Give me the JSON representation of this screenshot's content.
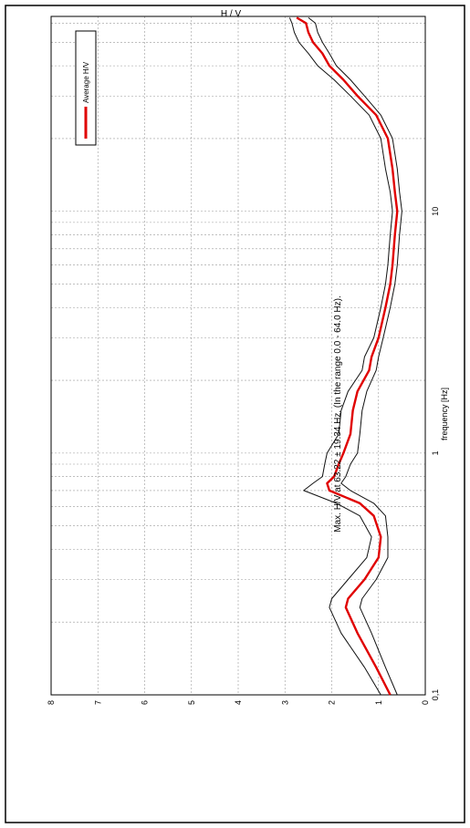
{
  "chart_data": {
    "type": "line",
    "title": "Max. H/V at 63.22 ± 19.34 Hz. (In the range 0.0 - 64.0 Hz).",
    "xlabel": "frequency [Hz]",
    "ylabel": "H / V",
    "x_scale": "log",
    "xlim": [
      0.1,
      64
    ],
    "ylim": [
      0,
      8
    ],
    "x_tick_labels": [
      "0,1",
      "1",
      "10"
    ],
    "y_tick_labels": [
      "0",
      "1",
      "2",
      "3",
      "4",
      "5",
      "6",
      "7",
      "8"
    ],
    "grid": true,
    "legend_position": "top-right",
    "orientation": "rotated 90° counter-clockwise",
    "colors": {
      "average": "#e00000",
      "bounds": "#111111",
      "grid": "#9a9a9a"
    },
    "x": [
      0.1,
      0.13,
      0.18,
      0.23,
      0.25,
      0.3,
      0.37,
      0.45,
      0.55,
      0.62,
      0.7,
      0.75,
      0.8,
      0.9,
      1.0,
      1.2,
      1.5,
      1.8,
      2.2,
      2.5,
      3.0,
      4.0,
      5.0,
      6.0,
      8.0,
      10.0,
      12.0,
      15.0,
      20.0,
      25.0,
      30.0,
      35.0,
      40.0,
      45.0,
      50.0,
      55.0,
      60.0,
      63.22
    ],
    "series": [
      {
        "name": "Average H/V",
        "values": [
          0.75,
          1.05,
          1.45,
          1.7,
          1.65,
          1.3,
          1.0,
          0.95,
          1.1,
          1.4,
          2.05,
          2.1,
          1.95,
          1.85,
          1.75,
          1.6,
          1.55,
          1.45,
          1.2,
          1.15,
          1.0,
          0.85,
          0.75,
          0.7,
          0.65,
          0.6,
          0.65,
          0.7,
          0.8,
          1.05,
          1.45,
          1.75,
          2.05,
          2.2,
          2.4,
          2.5,
          2.55,
          2.75
        ]
      },
      {
        "values": [
          0.95,
          1.3,
          1.8,
          2.05,
          2.0,
          1.65,
          1.25,
          1.15,
          1.4,
          1.9,
          2.6,
          2.4,
          2.2,
          2.15,
          2.1,
          1.85,
          1.8,
          1.65,
          1.35,
          1.3,
          1.1,
          0.95,
          0.85,
          0.8,
          0.75,
          0.7,
          0.75,
          0.85,
          0.95,
          1.2,
          1.6,
          1.95,
          2.3,
          2.5,
          2.7,
          2.8,
          2.85,
          2.9
        ]
      },
      {
        "values": [
          0.6,
          0.85,
          1.15,
          1.4,
          1.35,
          1.05,
          0.8,
          0.8,
          0.85,
          1.1,
          1.6,
          1.8,
          1.7,
          1.6,
          1.45,
          1.4,
          1.35,
          1.25,
          1.05,
          1.0,
          0.9,
          0.75,
          0.65,
          0.6,
          0.55,
          0.5,
          0.55,
          0.6,
          0.7,
          0.95,
          1.3,
          1.6,
          1.9,
          2.05,
          2.2,
          2.3,
          2.35,
          2.5
        ]
      }
    ]
  }
}
